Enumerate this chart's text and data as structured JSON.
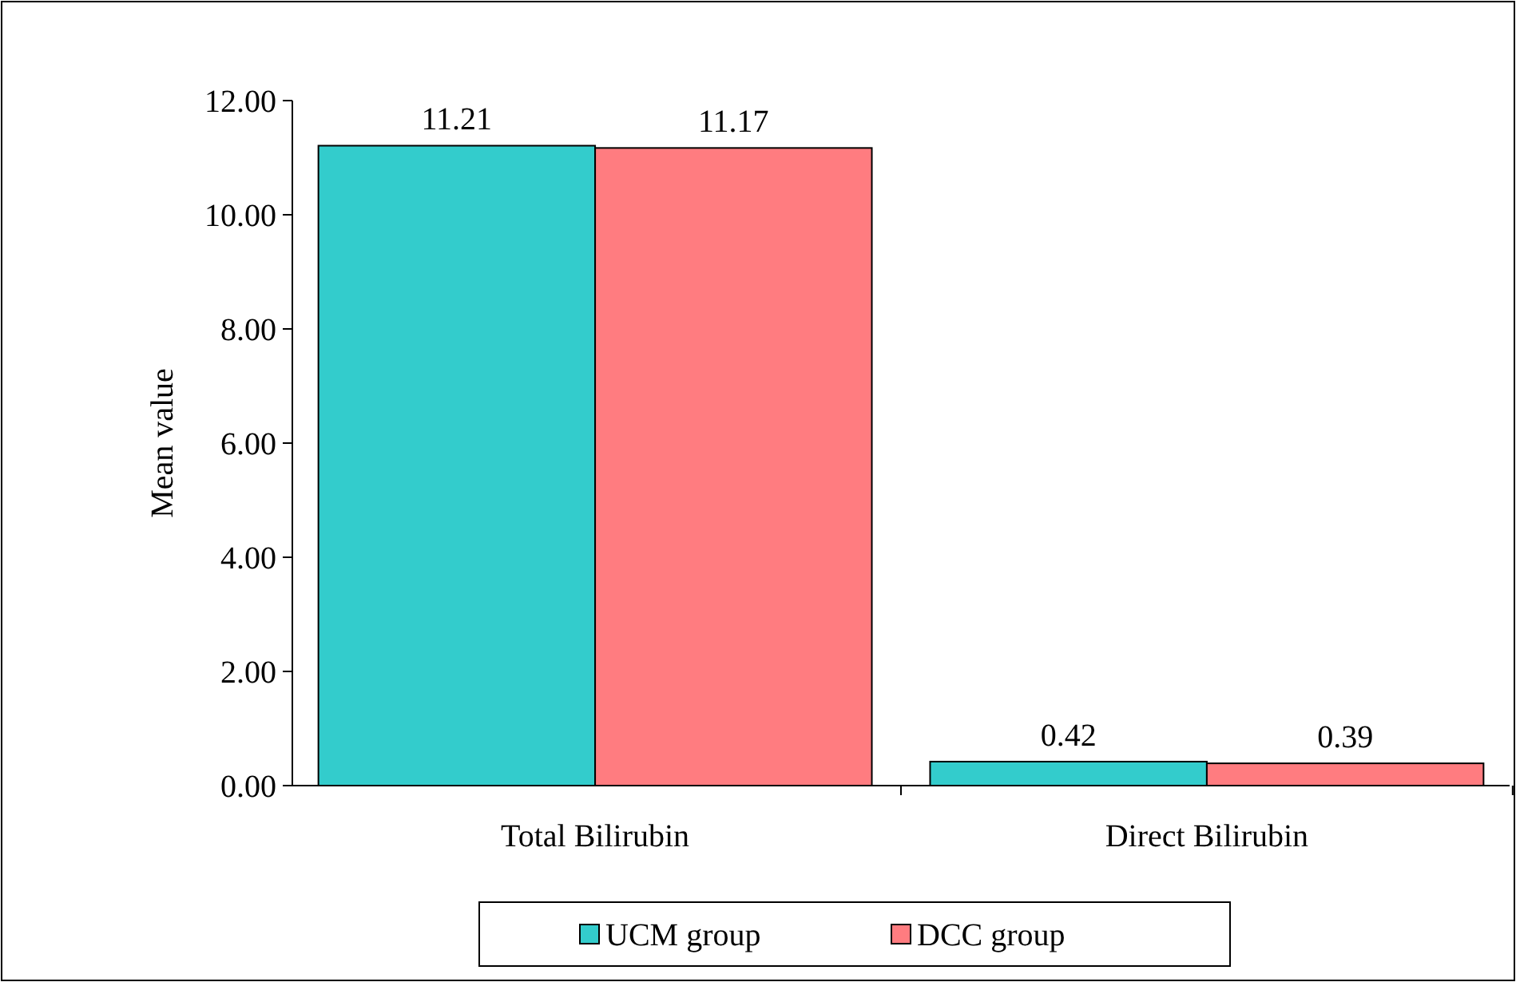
{
  "chart_data": {
    "type": "bar",
    "ylabel": "Mean value",
    "categories": [
      "Total Bilirubin",
      "Direct Bilirubin"
    ],
    "series": [
      {
        "name": "UCM group",
        "color": "#33cccc",
        "values": [
          11.21,
          0.42
        ]
      },
      {
        "name": "DCC group",
        "color": "#ff7c80",
        "values": [
          11.17,
          0.39
        ]
      }
    ],
    "ylim": [
      0,
      12
    ],
    "yticks": [
      {
        "value": 0,
        "label": "0.00"
      },
      {
        "value": 2,
        "label": "2.00"
      },
      {
        "value": 4,
        "label": "4.00"
      },
      {
        "value": 6,
        "label": "6.00"
      },
      {
        "value": 8,
        "label": "8.00"
      },
      {
        "value": 10,
        "label": "10.00"
      },
      {
        "value": 12,
        "label": "12.00"
      }
    ],
    "data_labels": true,
    "legend": "bottom",
    "grid": false
  }
}
